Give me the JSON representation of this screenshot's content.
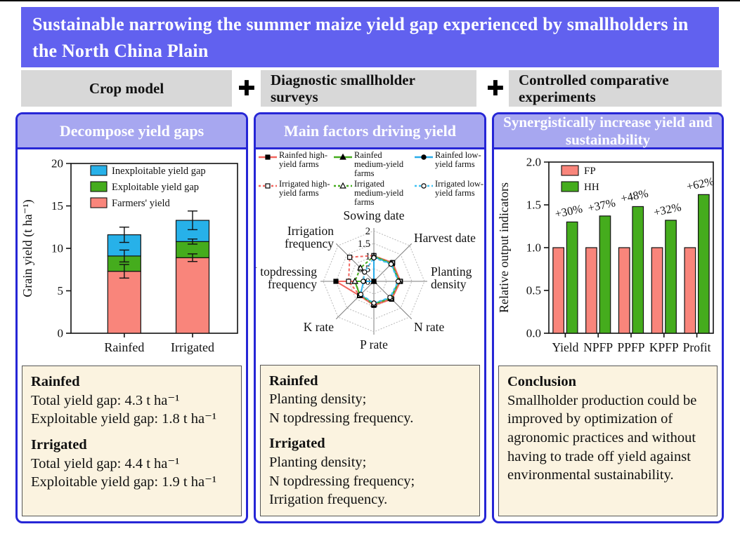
{
  "title": {
    "text": "Sustainable narrowing the summer maize yield gap experienced by smallholders in the North China Plain",
    "bg_color": "#6161EF"
  },
  "methods": {
    "plus_icon": "✚",
    "items": [
      {
        "label": "Crop model"
      },
      {
        "label": "Diagnostic smallholder surveys"
      },
      {
        "label": "Controlled comparative experiments"
      }
    ]
  },
  "panels": [
    {
      "header": "Decompose yield gaps",
      "note": [
        {
          "heading": "Rainfed",
          "lines": [
            "Total yield gap: 4.3 t ha⁻¹",
            "Exploitable yield gap: 1.8 t ha⁻¹"
          ]
        },
        {
          "heading": "Irrigated",
          "lines": [
            "Total yield gap: 4.4 t ha⁻¹",
            "Exploitable yield gap: 1.9 t ha⁻¹"
          ]
        }
      ]
    },
    {
      "header": "Main factors driving yield",
      "note": [
        {
          "heading": "Rainfed",
          "lines": [
            "Planting density;",
            "N topdressing frequency."
          ]
        },
        {
          "heading": "Irrigated",
          "lines": [
            "Planting density;",
            "N topdressing frequency;",
            "Irrigation frequency."
          ]
        }
      ]
    },
    {
      "header": "Synergistically increase yield and sustainability",
      "note": [
        {
          "heading": "Conclusion",
          "lines": [
            "Smallholder production could be improved by optimization of agronomic practices and without having to trade off yield against environmental sustainability."
          ]
        }
      ]
    }
  ],
  "chart_data": [
    {
      "type": "bar",
      "subtype": "stacked",
      "ylabel": "Grain yield (t ha⁻¹)",
      "ylim": [
        0,
        20
      ],
      "yticks": [
        0,
        5,
        10,
        15,
        20
      ],
      "categories": [
        "Rainfed",
        "Irrigated"
      ],
      "series": [
        {
          "name": "Farmers' yield",
          "color": "#F9857B",
          "values": [
            7.3,
            8.9
          ],
          "errors": [
            0.8,
            0.45
          ]
        },
        {
          "name": "Exploitable yield gap",
          "color": "#45AC1D",
          "values": [
            1.8,
            1.9
          ],
          "errors": [
            0.7,
            0.3
          ]
        },
        {
          "name": "Inexploitable yield gap",
          "color": "#27B1E9",
          "values": [
            2.5,
            2.5
          ],
          "errors": [
            0.9,
            1.1
          ]
        }
      ],
      "totals": [
        11.6,
        13.3
      ],
      "legend_position": "top-left-inside",
      "grid": false
    },
    {
      "type": "radar",
      "rlim": [
        0,
        2
      ],
      "rticks": [
        0,
        0.5,
        1,
        1.5,
        2
      ],
      "axes": [
        "Sowing date",
        "Harvest date",
        "Planting density",
        "N rate",
        "P rate",
        "K rate",
        "N topdressing frequency",
        "Irrigation frequency"
      ],
      "axes_display": [
        [
          "Sowing date"
        ],
        [
          "Harvest date"
        ],
        [
          "Planting",
          "density"
        ],
        [
          "N rate"
        ],
        [
          "P rate"
        ],
        [
          "K rate"
        ],
        [
          "N topdressing",
          "frequency"
        ],
        [
          "Irrigation",
          "frequency"
        ]
      ],
      "series": [
        {
          "name": "Rainfed high-yield farms",
          "color": "#F2655E",
          "dash": "solid",
          "marker": "square-filled",
          "values": [
            1.0,
            1.05,
            1.05,
            1.0,
            0.95,
            0.8,
            1.5,
            0.0
          ]
        },
        {
          "name": "Rainfed medium-yield farms",
          "color": "#45AC1D",
          "dash": "solid",
          "marker": "triangle-filled",
          "values": [
            1.0,
            1.0,
            1.0,
            0.95,
            0.9,
            0.78,
            0.75,
            0.0
          ]
        },
        {
          "name": "Rainfed low-yield farms",
          "color": "#29ACE9",
          "dash": "solid",
          "marker": "circle-filled",
          "values": [
            0.97,
            0.98,
            0.98,
            0.93,
            0.88,
            0.76,
            0.4,
            0.0
          ]
        },
        {
          "name": "Irrigated high-yield farms",
          "color": "#F2655E",
          "dash": "dotted",
          "marker": "square-open",
          "values": [
            1.02,
            1.03,
            1.03,
            0.98,
            0.93,
            0.79,
            1.0,
            1.35
          ]
        },
        {
          "name": "Irrigated medium-yield farms",
          "color": "#45AC1D",
          "dash": "dotted",
          "marker": "triangle-open",
          "values": [
            0.99,
            1.0,
            1.0,
            0.95,
            0.9,
            0.77,
            0.75,
            0.75
          ]
        },
        {
          "name": "Irrigated low-yield farms",
          "color": "#41C2F1",
          "dash": "dotted",
          "marker": "circle-open",
          "values": [
            0.93,
            0.96,
            0.96,
            0.9,
            0.86,
            0.73,
            0.42,
            0.52
          ]
        }
      ],
      "legend_position": "top"
    },
    {
      "type": "bar",
      "subtype": "grouped",
      "ylabel": "Relative output indicators",
      "ylim": [
        0,
        2
      ],
      "yticks": [
        0.0,
        0.5,
        1.0,
        1.5,
        2.0
      ],
      "categories": [
        "Yield",
        "NPFP",
        "PPFP",
        "KPFP",
        "Profit"
      ],
      "series": [
        {
          "name": "FP",
          "color": "#F9857B",
          "values": [
            1.0,
            1.0,
            1.0,
            1.0,
            1.0
          ]
        },
        {
          "name": "HH",
          "color": "#45AC1D",
          "values": [
            1.3,
            1.37,
            1.48,
            1.32,
            1.62
          ]
        }
      ],
      "bar_labels": [
        "+30%",
        "+37%",
        "+48%",
        "+32%",
        "+62%"
      ],
      "legend_position": "top-left-inside",
      "grid": false
    }
  ]
}
